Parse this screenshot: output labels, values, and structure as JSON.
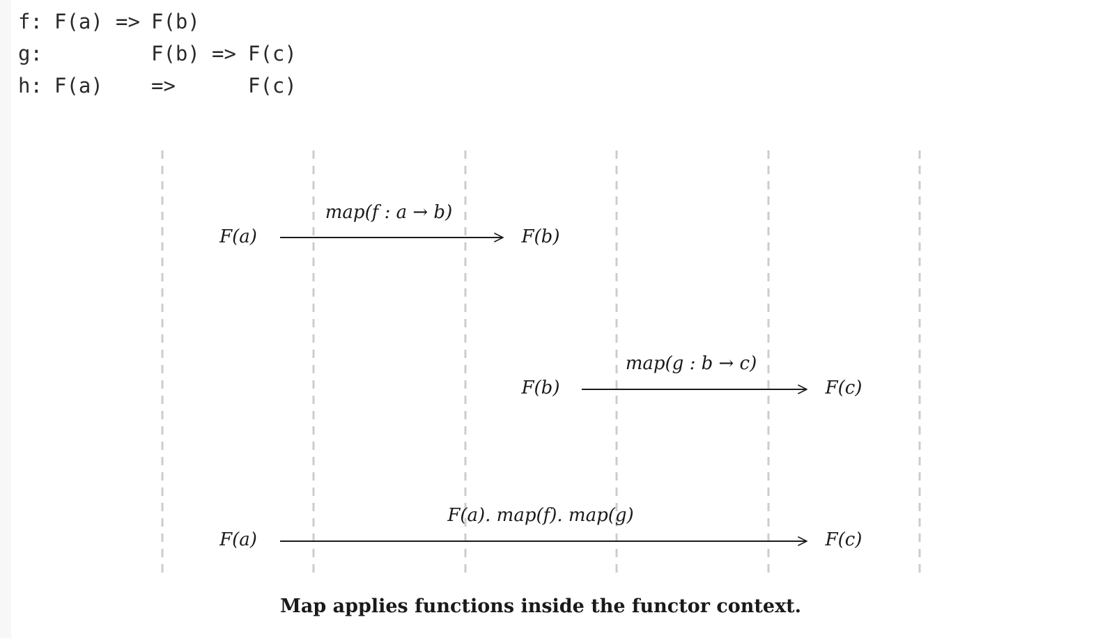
{
  "code": {
    "lines": [
      {
        "name": "f:",
        "src": "F(a)",
        "arrow": "=>",
        "dst": "F(b)"
      },
      {
        "name": "g:",
        "src": "F(b)",
        "arrow": "=>",
        "dst": "F(c)"
      },
      {
        "name": "h:",
        "src": "F(a)",
        "arrow": "=>",
        "dst": "F(c)"
      }
    ]
  },
  "diagram": {
    "rows": [
      {
        "label": "map(f : a → b)",
        "from": "F(a)",
        "to": "F(b)"
      },
      {
        "label": "map(g : b → c)",
        "from": "F(b)",
        "to": "F(c)"
      },
      {
        "label": "F(a). map(f). map(g)",
        "from": "F(a)",
        "to": "F(c)"
      }
    ]
  },
  "caption": "Map applies functions inside the functor context.",
  "colors": {
    "arrow": "#1a1a1a",
    "guide": "#cccccc",
    "text": "#1a1a1a"
  }
}
